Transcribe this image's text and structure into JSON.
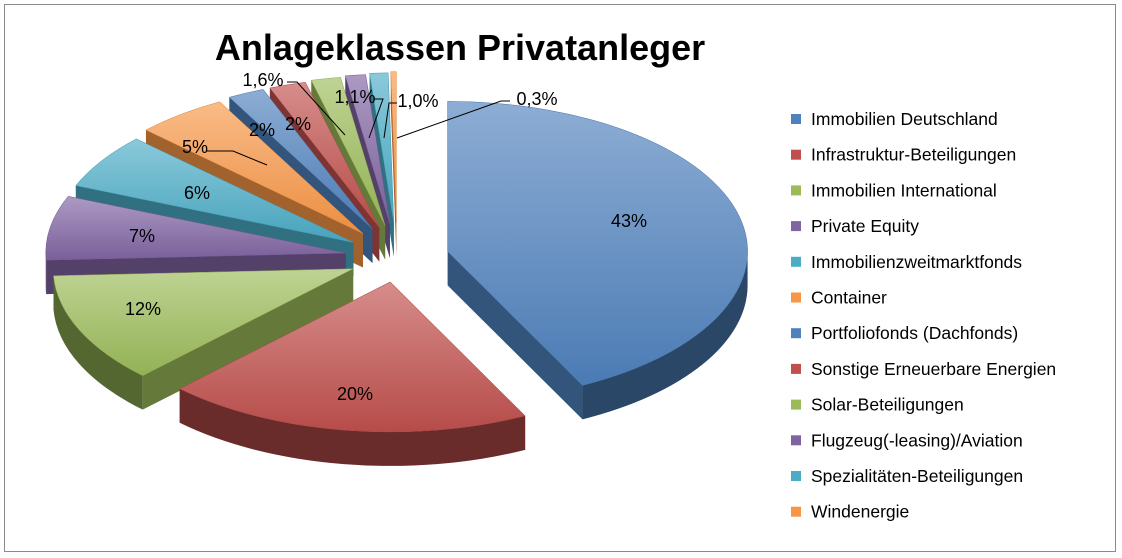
{
  "chart_data": {
    "type": "pie",
    "style": "3d-exploded",
    "title": "Anlageklassen Privatanleger",
    "legend_position": "right",
    "slices": [
      {
        "name": "Immobilien Deutschland",
        "value": 43,
        "label": "43%",
        "color": "#4f81bd"
      },
      {
        "name": "Infrastruktur-Beteiligungen",
        "value": 20,
        "label": "20%",
        "color": "#c0504d"
      },
      {
        "name": "Immobilien International",
        "value": 12,
        "label": "12%",
        "color": "#9bbb59"
      },
      {
        "name": "Private Equity",
        "value": 7,
        "label": "7%",
        "color": "#8064a2"
      },
      {
        "name": "Immobilienzweitmarktfonds",
        "value": 6,
        "label": "6%",
        "color": "#4bacc6"
      },
      {
        "name": "Container",
        "value": 5,
        "label": "5%",
        "color": "#f79646"
      },
      {
        "name": "Portfoliofonds (Dachfonds)",
        "value": 2,
        "label": "2%",
        "color": "#4f81bd"
      },
      {
        "name": "Sonstige Erneuerbare Energien",
        "value": 2,
        "label": "2%",
        "color": "#c0504d"
      },
      {
        "name": "Solar-Beteiligungen",
        "value": 1.6,
        "label": "1,6%",
        "color": "#9bbb59"
      },
      {
        "name": "Flugzeug(-leasing)/Aviation",
        "value": 1.1,
        "label": "1,1%",
        "color": "#8064a2"
      },
      {
        "name": "Spezialitäten-Beteiligungen",
        "value": 1.0,
        "label": "1,0%",
        "color": "#4bacc6"
      },
      {
        "name": "Windenergie",
        "value": 0.3,
        "label": "0,3%",
        "color": "#f79646"
      }
    ]
  }
}
